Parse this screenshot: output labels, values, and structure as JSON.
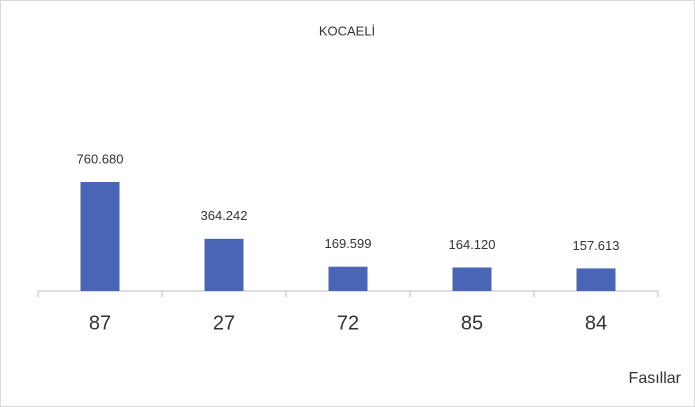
{
  "chart_data": {
    "type": "bar",
    "title": "KOCAELİ",
    "x_label": "Fasıllar",
    "categories": [
      "87",
      "27",
      "72",
      "85",
      "84"
    ],
    "values": [
      760680,
      364242,
      169599,
      164120,
      157613
    ],
    "value_labels": [
      "760.680",
      "364.242",
      "169.599",
      "164.120",
      "157.613"
    ],
    "color": "#4a65b5"
  }
}
